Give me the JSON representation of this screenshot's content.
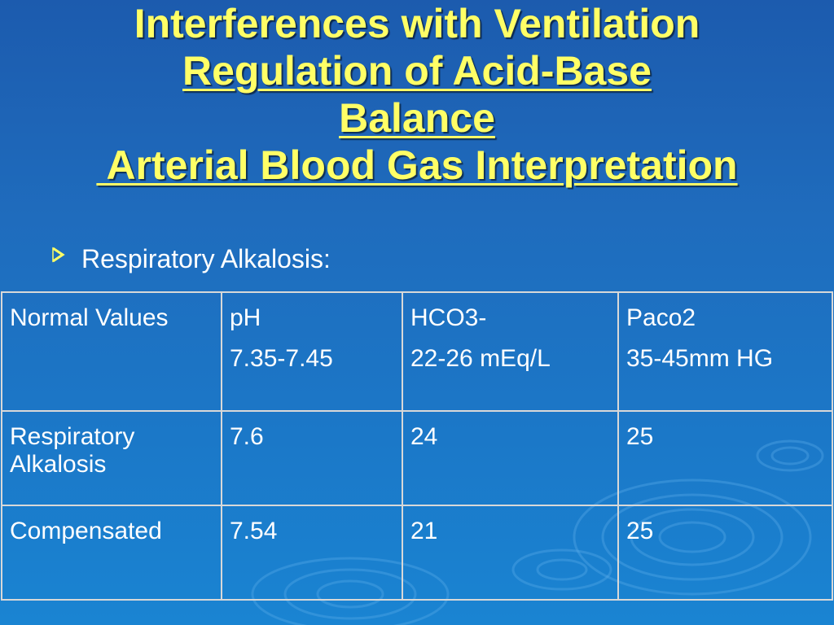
{
  "colors": {
    "background": "#1f6cbd",
    "title": "#ffff66",
    "text": "#ffffff",
    "table_border": "#d8d8d8",
    "bullet_marker": "#ffff66"
  },
  "title": {
    "line1": "Interferences with Ventilation",
    "line2": "Regulation of Acid-Base",
    "line3": "Balance",
    "line4": " Arterial Blood Gas Interpretation"
  },
  "bullet": {
    "icon": "arrow-bullet-icon",
    "text": "Respiratory Alkalosis:"
  },
  "table": {
    "rows": [
      {
        "cells": [
          [
            "Normal Values"
          ],
          [
            "pH",
            "7.35-7.45"
          ],
          [
            "HCO3-",
            "22-26 mEq/L"
          ],
          [
            "Paco2",
            "35-45mm HG"
          ]
        ]
      },
      {
        "cells": [
          [
            "Respiratory Alkalosis"
          ],
          [
            "7.6"
          ],
          [
            "24"
          ],
          [
            "25"
          ]
        ]
      },
      {
        "cells": [
          [
            "Compensated"
          ],
          [
            "7.54"
          ],
          [
            "21"
          ],
          [
            "25"
          ]
        ]
      }
    ]
  }
}
